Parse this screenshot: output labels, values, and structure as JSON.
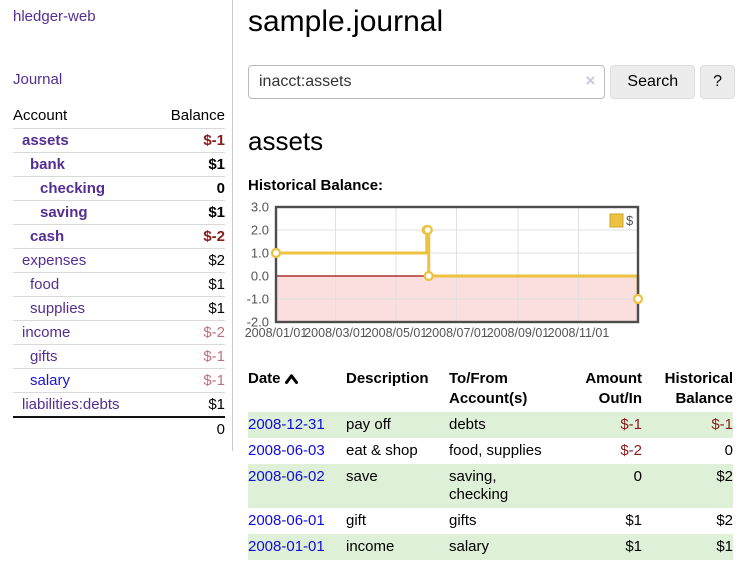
{
  "app": {
    "brand": "hledger-web",
    "nav_journal": "Journal"
  },
  "sidebar": {
    "accounts_header": {
      "account": "Account",
      "balance": "Balance"
    },
    "accounts": [
      {
        "name": "assets",
        "depth": 1,
        "bold": true,
        "balance": "$-1",
        "balance_tone": "negative-strong"
      },
      {
        "name": "bank",
        "depth": 2,
        "bold": true,
        "balance": "$1",
        "balance_tone": "normal"
      },
      {
        "name": "checking",
        "depth": 3,
        "bold": true,
        "balance": "0",
        "balance_tone": "normal"
      },
      {
        "name": "saving",
        "depth": 3,
        "bold": true,
        "balance": "$1",
        "balance_tone": "normal"
      },
      {
        "name": "cash",
        "depth": 2,
        "bold": true,
        "balance": "$-2",
        "balance_tone": "negative-strong"
      },
      {
        "name": "expenses",
        "depth": 1,
        "bold": false,
        "balance": "$2",
        "balance_tone": "normal"
      },
      {
        "name": "food",
        "depth": 2,
        "bold": false,
        "balance": "$1",
        "balance_tone": "normal"
      },
      {
        "name": "supplies",
        "depth": 2,
        "bold": false,
        "balance": "$1",
        "balance_tone": "normal"
      },
      {
        "name": "income",
        "depth": 1,
        "bold": false,
        "balance": "$-2",
        "balance_tone": "negative-soft"
      },
      {
        "name": "gifts",
        "depth": 2,
        "bold": false,
        "balance": "$-1",
        "balance_tone": "negative-soft"
      },
      {
        "name": "salary",
        "depth": 2,
        "bold": false,
        "balance": "$-1",
        "balance_tone": "negative-soft",
        "link_tone": "unvisited"
      },
      {
        "name": "liabilities:debts",
        "depth": 1,
        "bold": false,
        "balance": "$1",
        "balance_tone": "normal"
      }
    ],
    "total": "0"
  },
  "header": {
    "title": "sample.journal"
  },
  "search": {
    "value": "inacct:assets",
    "clear_icon": "×",
    "button": "Search",
    "help_button": "?"
  },
  "account_page": {
    "title": "assets",
    "chart_label": "Historical Balance:"
  },
  "chart_data": {
    "type": "line",
    "step": true,
    "title": "Historical Balance:",
    "x_ticks": [
      "2008/01/01",
      "2008/03/01",
      "2008/05/01",
      "2008/07/01",
      "2008/09/01",
      "2008/11/01"
    ],
    "y_ticks": [
      3.0,
      2.0,
      1.0,
      0.0,
      -1.0,
      -2.0
    ],
    "xlim": [
      "2008-01-01",
      "2008-12-31"
    ],
    "ylim": [
      -2.0,
      3.0
    ],
    "grid": true,
    "legend_position": "top-right",
    "legend": [
      {
        "label": "$",
        "color": "#edc240"
      }
    ],
    "series": [
      {
        "name": "$",
        "color": "#edc240",
        "points": [
          [
            "2008-01-01",
            1.0
          ],
          [
            "2008-06-01",
            2.0
          ],
          [
            "2008-06-02",
            2.0
          ],
          [
            "2008-06-03",
            0.0
          ],
          [
            "2008-12-31",
            -1.0
          ]
        ]
      }
    ],
    "colors": {
      "negative_region": "#fbdede",
      "zero_line": "#9e0c0c",
      "grid": "#e0e0e0",
      "border": "#4d4d4d",
      "axis_label": "#545454",
      "legend_border": "#c9a52c",
      "marker_fill": "#ffffff"
    }
  },
  "register_table": {
    "columns": {
      "date": "Date",
      "description": "Description",
      "accounts": "To/From Account(s)",
      "amount": "Amount Out/In",
      "balance": "Historical Balance"
    },
    "rows": [
      {
        "date": "2008-12-31",
        "description": "pay off",
        "accounts": "debts",
        "amount": "$-1",
        "amount_tone": "negative",
        "balance": "$-1",
        "balance_tone": "negative"
      },
      {
        "date": "2008-06-03",
        "description": "eat & shop",
        "accounts": "food, supplies",
        "amount": "$-2",
        "amount_tone": "negative",
        "balance": "0",
        "balance_tone": "normal"
      },
      {
        "date": "2008-06-02",
        "description": "save",
        "accounts": "saving, checking",
        "amount": "0",
        "amount_tone": "normal",
        "balance": "$2",
        "balance_tone": "normal"
      },
      {
        "date": "2008-06-01",
        "description": "gift",
        "accounts": "gifts",
        "amount": "$1",
        "amount_tone": "normal",
        "balance": "$2",
        "balance_tone": "normal"
      },
      {
        "date": "2008-01-01",
        "description": "income",
        "accounts": "salary",
        "amount": "$1",
        "amount_tone": "normal",
        "balance": "$1",
        "balance_tone": "normal"
      }
    ]
  }
}
